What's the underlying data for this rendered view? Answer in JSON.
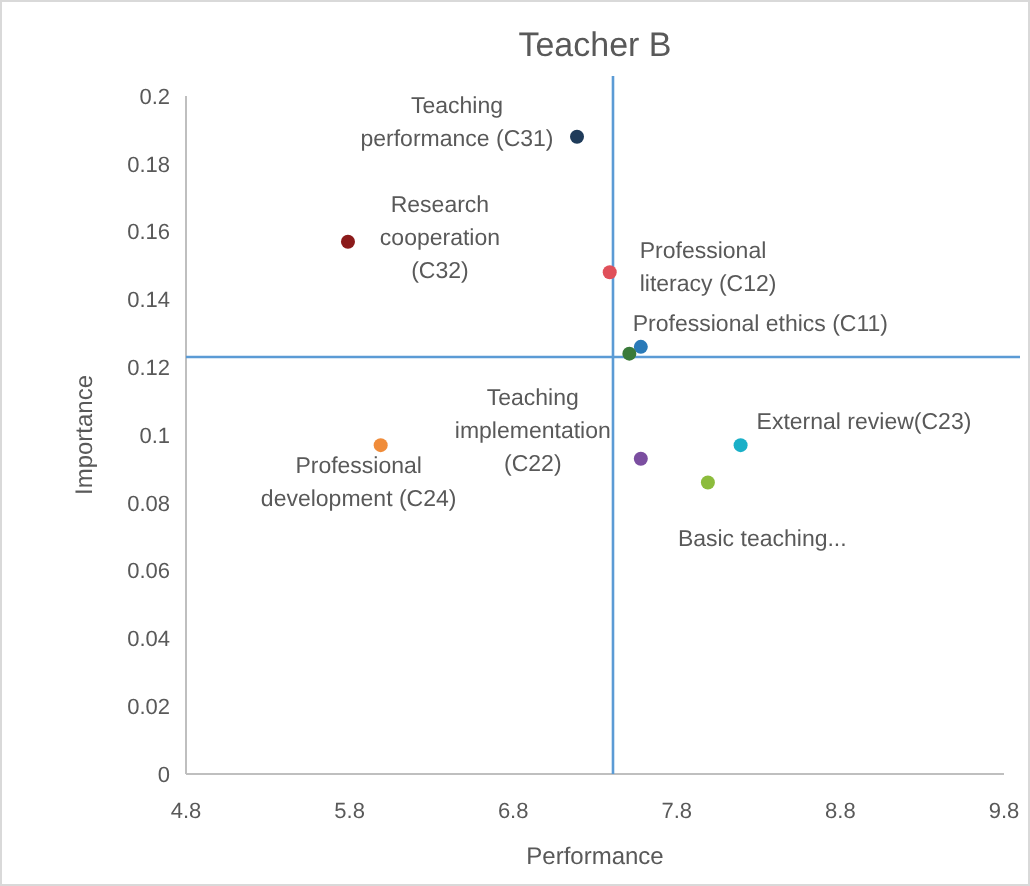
{
  "chart_data": {
    "type": "scatter",
    "title": "Teacher B",
    "xlabel": "Performance",
    "ylabel": "Importance",
    "xlim": [
      4.8,
      9.8
    ],
    "xticks": [
      4.8,
      5.8,
      6.8,
      7.8,
      8.8,
      9.8
    ],
    "ylim": [
      0,
      0.2
    ],
    "yticks": [
      0,
      0.02,
      0.04,
      0.06,
      0.08,
      0.1,
      0.12,
      0.14,
      0.16,
      0.18,
      0.2
    ],
    "marker": "circle",
    "ref_lines": [
      {
        "axis": "x",
        "value": 7.41,
        "color": "#5b9bd5"
      },
      {
        "axis": "y",
        "value": 0.123,
        "color": "#5b9bd5"
      }
    ],
    "series": [
      {
        "name": "Teaching performance (C31)",
        "color": "#1f3b5a",
        "x": [
          7.19
        ],
        "values": [
          0.188
        ]
      },
      {
        "name": "Research cooperation (C32)",
        "color": "#8b1a1a",
        "x": [
          5.79
        ],
        "values": [
          0.157
        ]
      },
      {
        "name": "Professional literacy (C12)",
        "color": "#e0505a",
        "x": [
          7.39
        ],
        "values": [
          0.148
        ]
      },
      {
        "name": "Professional ethics (C11)",
        "color": "#2a7ab8",
        "x": [
          7.58
        ],
        "values": [
          0.126
        ]
      },
      {
        "color": "#3a7a3a",
        "x": [
          7.51
        ],
        "values": [
          0.124
        ]
      },
      {
        "name": "Professional development (C24)",
        "color": "#f08c3a",
        "x": [
          5.99
        ],
        "values": [
          0.097
        ]
      },
      {
        "name": "Teaching implementation (C22)",
        "color": "#7b4ea0",
        "x": [
          7.58
        ],
        "values": [
          0.093
        ]
      },
      {
        "name": "External review(C23)",
        "color": "#1ab0c8",
        "x": [
          8.19
        ],
        "values": [
          0.097
        ]
      },
      {
        "name": "Basic teaching...",
        "color": "#8cbc3c",
        "x": [
          7.99
        ],
        "values": [
          0.086
        ]
      }
    ]
  }
}
